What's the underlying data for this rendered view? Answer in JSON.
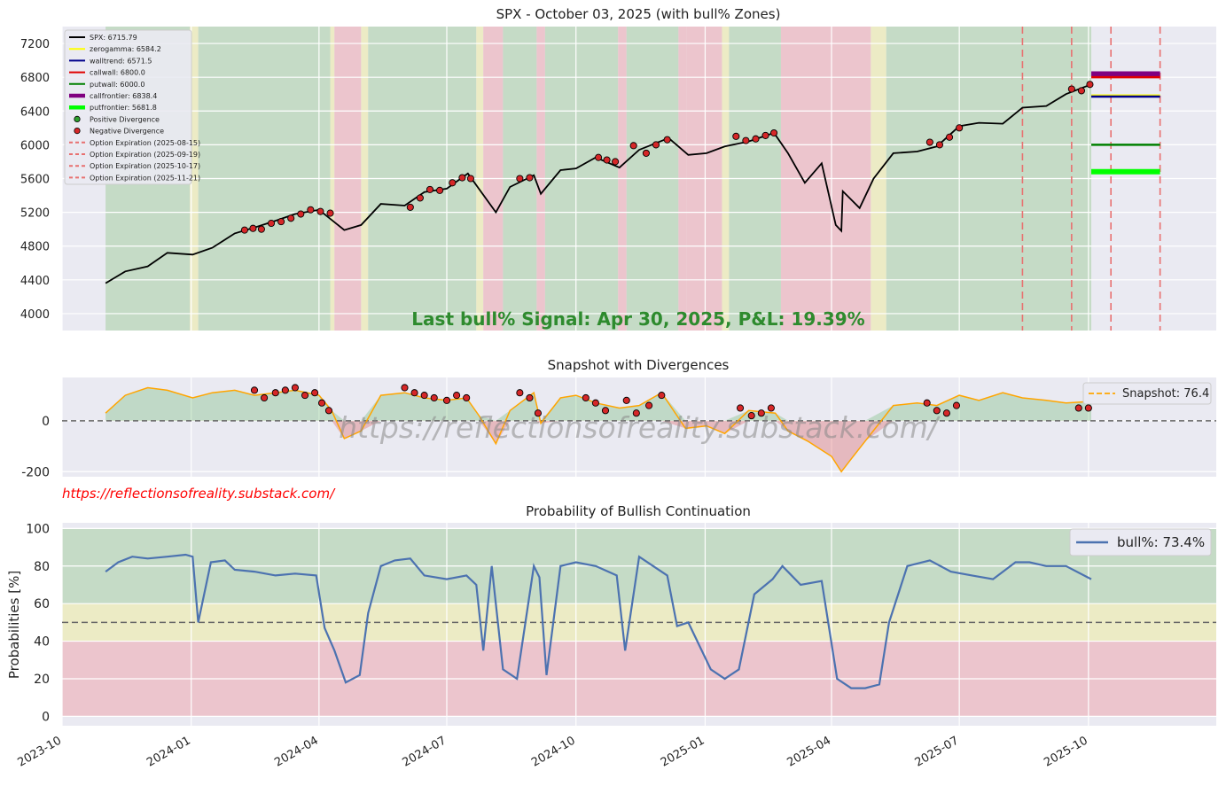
{
  "colors": {
    "axes_bg": "#eaeaf2",
    "grid": "#ffffff",
    "zone_green": "#c5dbc6",
    "zone_yellow": "#ecebc5",
    "zone_red": "#ecc5cd",
    "spx": "#000000",
    "zerogamma": "#ffff00",
    "walltrend": "#00008b",
    "callwall": "#e00000",
    "putwall": "#008000",
    "callfrontier": "#800080",
    "putfrontier": "#00ff00",
    "expiration": "#e87070",
    "divergence_fill": "#d62728",
    "snapshot_line": "#ffa500",
    "bull_line": "#4c72b0",
    "signal_text": "#2e8b2e",
    "watermark": "#ff0000"
  },
  "chart_data": [
    {
      "type": "line",
      "title": "SPX - October 03, 2025 (with bull% Zones)",
      "annotation": "Last bull% Signal: Apr 30, 2025, P&L: 19.39%",
      "x_range": [
        "2023-10-01",
        "2025-12-31"
      ],
      "ylim": [
        3800,
        7400
      ],
      "yticks": [
        4000,
        4400,
        4800,
        5200,
        5600,
        6000,
        6400,
        6800,
        7200
      ],
      "grid": true,
      "legend_position": "top-left",
      "legend": [
        {
          "label": "SPX:  6715.79",
          "kind": "line",
          "color": "#000000"
        },
        {
          "label": "zerogamma: 6584.2",
          "kind": "line",
          "color": "#ffff00"
        },
        {
          "label": "walltrend: 6571.5",
          "kind": "line",
          "color": "#00008b"
        },
        {
          "label": "callwall: 6800.0",
          "kind": "line",
          "color": "#e00000"
        },
        {
          "label": "putwall: 6000.0",
          "kind": "line",
          "color": "#008000"
        },
        {
          "label": "callfrontier: 6838.4",
          "kind": "thick",
          "color": "#800080"
        },
        {
          "label": "putfrontier: 5681.8",
          "kind": "thick",
          "color": "#00ff00"
        },
        {
          "label": "Positive Divergence",
          "kind": "dot",
          "color": "#2ca02c"
        },
        {
          "label": "Negative Divergence",
          "kind": "dot",
          "color": "#d62728"
        },
        {
          "label": "Option Expiration (2025-08-15)",
          "kind": "dash",
          "color": "#e87070"
        },
        {
          "label": "Option Expiration (2025-09-19)",
          "kind": "dash",
          "color": "#e87070"
        },
        {
          "label": "Option Expiration (2025-10-17)",
          "kind": "dash",
          "color": "#e87070"
        },
        {
          "label": "Option Expiration (2025-11-21)",
          "kind": "dash",
          "color": "#e87070"
        }
      ],
      "spx_series": {
        "x": [
          "2023-11-01",
          "2023-11-15",
          "2023-12-01",
          "2023-12-15",
          "2024-01-02",
          "2024-01-16",
          "2024-02-01",
          "2024-02-15",
          "2024-03-01",
          "2024-03-15",
          "2024-04-01",
          "2024-04-19",
          "2024-05-01",
          "2024-05-15",
          "2024-06-01",
          "2024-06-15",
          "2024-07-01",
          "2024-07-16",
          "2024-08-05",
          "2024-08-15",
          "2024-09-01",
          "2024-09-06",
          "2024-09-20",
          "2024-10-01",
          "2024-10-15",
          "2024-11-01",
          "2024-11-15",
          "2024-12-06",
          "2024-12-20",
          "2025-01-02",
          "2025-01-15",
          "2025-02-01",
          "2025-02-19",
          "2025-03-01",
          "2025-03-13",
          "2025-03-25",
          "2025-04-04",
          "2025-04-08",
          "2025-04-09",
          "2025-04-21",
          "2025-05-01",
          "2025-05-15",
          "2025-06-01",
          "2025-06-15",
          "2025-07-01",
          "2025-07-15",
          "2025-08-01",
          "2025-08-15",
          "2025-09-01",
          "2025-09-15",
          "2025-10-03"
        ],
        "y": [
          4360,
          4500,
          4560,
          4720,
          4700,
          4780,
          4950,
          5020,
          5100,
          5180,
          5230,
          4990,
          5050,
          5300,
          5280,
          5440,
          5480,
          5660,
          5200,
          5500,
          5640,
          5420,
          5700,
          5720,
          5850,
          5730,
          5940,
          6080,
          5880,
          5900,
          5980,
          6040,
          6140,
          5900,
          5550,
          5780,
          5050,
          4980,
          5450,
          5250,
          5600,
          5900,
          5920,
          5980,
          6220,
          6260,
          6250,
          6440,
          6460,
          6600,
          6716
        ]
      },
      "horizontal_levels": [
        {
          "name": "callfrontier",
          "value": 6838.4
        },
        {
          "name": "callwall",
          "value": 6800.0
        },
        {
          "name": "zerogamma",
          "value": 6584.2
        },
        {
          "name": "walltrend",
          "value": 6571.5
        },
        {
          "name": "putwall",
          "value": 6000.0
        },
        {
          "name": "putfrontier",
          "value": 5681.8
        }
      ],
      "expirations": [
        "2025-08-15",
        "2025-09-19",
        "2025-10-17",
        "2025-11-21"
      ],
      "zones": [
        {
          "start": "2023-11-01",
          "end": "2023-12-31",
          "zone": "green"
        },
        {
          "start": "2023-12-31",
          "end": "2024-01-06",
          "zone": "yellow"
        },
        {
          "start": "2024-01-06",
          "end": "2024-04-09",
          "zone": "green"
        },
        {
          "start": "2024-04-09",
          "end": "2024-04-12",
          "zone": "yellow"
        },
        {
          "start": "2024-04-12",
          "end": "2024-05-01",
          "zone": "red"
        },
        {
          "start": "2024-05-01",
          "end": "2024-05-06",
          "zone": "yellow"
        },
        {
          "start": "2024-05-06",
          "end": "2024-07-22",
          "zone": "green"
        },
        {
          "start": "2024-07-22",
          "end": "2024-07-27",
          "zone": "yellow"
        },
        {
          "start": "2024-07-27",
          "end": "2024-08-10",
          "zone": "red"
        },
        {
          "start": "2024-08-10",
          "end": "2024-09-03",
          "zone": "green"
        },
        {
          "start": "2024-09-03",
          "end": "2024-09-09",
          "zone": "red"
        },
        {
          "start": "2024-09-09",
          "end": "2024-10-31",
          "zone": "green"
        },
        {
          "start": "2024-10-31",
          "end": "2024-11-06",
          "zone": "red"
        },
        {
          "start": "2024-11-06",
          "end": "2024-12-13",
          "zone": "green"
        },
        {
          "start": "2024-12-13",
          "end": "2024-12-19",
          "zone": "red"
        },
        {
          "start": "2024-12-19",
          "end": "2025-01-13",
          "zone": "red"
        },
        {
          "start": "2025-01-13",
          "end": "2025-01-18",
          "zone": "yellow"
        },
        {
          "start": "2025-01-18",
          "end": "2025-02-24",
          "zone": "green"
        },
        {
          "start": "2025-02-24",
          "end": "2025-04-29",
          "zone": "red"
        },
        {
          "start": "2025-04-29",
          "end": "2025-05-10",
          "zone": "yellow"
        },
        {
          "start": "2025-05-10",
          "end": "2025-10-03",
          "zone": "green"
        }
      ],
      "negative_divergence_markers": [
        {
          "x": "2024-02-08",
          "y": 4990
        },
        {
          "x": "2024-02-14",
          "y": 5010
        },
        {
          "x": "2024-02-20",
          "y": 5000
        },
        {
          "x": "2024-02-27",
          "y": 5070
        },
        {
          "x": "2024-03-05",
          "y": 5090
        },
        {
          "x": "2024-03-12",
          "y": 5130
        },
        {
          "x": "2024-03-19",
          "y": 5180
        },
        {
          "x": "2024-03-26",
          "y": 5230
        },
        {
          "x": "2024-04-02",
          "y": 5210
        },
        {
          "x": "2024-04-09",
          "y": 5190
        },
        {
          "x": "2024-06-05",
          "y": 5260
        },
        {
          "x": "2024-06-12",
          "y": 5370
        },
        {
          "x": "2024-06-19",
          "y": 5470
        },
        {
          "x": "2024-06-26",
          "y": 5460
        },
        {
          "x": "2024-07-05",
          "y": 5550
        },
        {
          "x": "2024-07-12",
          "y": 5610
        },
        {
          "x": "2024-07-18",
          "y": 5600
        },
        {
          "x": "2024-08-22",
          "y": 5600
        },
        {
          "x": "2024-08-29",
          "y": 5610
        },
        {
          "x": "2024-10-17",
          "y": 5850
        },
        {
          "x": "2024-10-23",
          "y": 5820
        },
        {
          "x": "2024-10-29",
          "y": 5800
        },
        {
          "x": "2024-11-11",
          "y": 5990
        },
        {
          "x": "2024-11-20",
          "y": 5900
        },
        {
          "x": "2024-11-27",
          "y": 6000
        },
        {
          "x": "2024-12-05",
          "y": 6060
        },
        {
          "x": "2025-01-23",
          "y": 6100
        },
        {
          "x": "2025-01-30",
          "y": 6050
        },
        {
          "x": "2025-02-06",
          "y": 6070
        },
        {
          "x": "2025-02-13",
          "y": 6110
        },
        {
          "x": "2025-02-19",
          "y": 6140
        },
        {
          "x": "2025-06-10",
          "y": 6030
        },
        {
          "x": "2025-06-17",
          "y": 6000
        },
        {
          "x": "2025-06-24",
          "y": 6090
        },
        {
          "x": "2025-07-01",
          "y": 6200
        },
        {
          "x": "2025-09-19",
          "y": 6660
        },
        {
          "x": "2025-09-26",
          "y": 6640
        },
        {
          "x": "2025-10-02",
          "y": 6715
        }
      ]
    },
    {
      "type": "area",
      "title": "Snapshot with Divergences",
      "ylim": [
        -220,
        170
      ],
      "yticks": [
        -200,
        0
      ],
      "grid": true,
      "legend_position": "top-right",
      "legend": [
        {
          "label": "Snapshot: 76.4",
          "kind": "dash",
          "color": "#ffa500"
        }
      ],
      "watermark": "https://reflectionsofreality.substack.com/",
      "series": {
        "x": [
          "2023-11-01",
          "2023-11-15",
          "2023-12-01",
          "2023-12-15",
          "2024-01-02",
          "2024-01-16",
          "2024-02-01",
          "2024-02-15",
          "2024-03-01",
          "2024-03-15",
          "2024-04-01",
          "2024-04-10",
          "2024-04-19",
          "2024-05-01",
          "2024-05-15",
          "2024-06-01",
          "2024-06-15",
          "2024-07-01",
          "2024-07-15",
          "2024-07-24",
          "2024-08-05",
          "2024-08-15",
          "2024-09-01",
          "2024-09-06",
          "2024-09-20",
          "2024-10-01",
          "2024-10-15",
          "2024-11-01",
          "2024-11-15",
          "2024-12-01",
          "2024-12-18",
          "2025-01-02",
          "2025-01-15",
          "2025-02-01",
          "2025-02-20",
          "2025-03-01",
          "2025-03-15",
          "2025-04-01",
          "2025-04-08",
          "2025-04-15",
          "2025-04-25",
          "2025-05-15",
          "2025-06-01",
          "2025-06-15",
          "2025-07-01",
          "2025-07-15",
          "2025-08-01",
          "2025-08-15",
          "2025-09-01",
          "2025-09-15",
          "2025-10-03"
        ],
        "y": [
          30,
          100,
          130,
          120,
          90,
          110,
          120,
          100,
          110,
          120,
          100,
          40,
          -70,
          -40,
          100,
          110,
          90,
          80,
          90,
          20,
          -90,
          40,
          110,
          -10,
          90,
          100,
          70,
          50,
          60,
          110,
          -30,
          -20,
          -50,
          40,
          30,
          -40,
          -80,
          -140,
          -200,
          -150,
          -80,
          60,
          70,
          60,
          100,
          80,
          110,
          90,
          80,
          70,
          76
        ]
      },
      "markers": [
        {
          "x": "2024-02-15",
          "y": 120
        },
        {
          "x": "2024-02-22",
          "y": 90
        },
        {
          "x": "2024-03-01",
          "y": 110
        },
        {
          "x": "2024-03-08",
          "y": 120
        },
        {
          "x": "2024-03-15",
          "y": 130
        },
        {
          "x": "2024-03-22",
          "y": 100
        },
        {
          "x": "2024-03-29",
          "y": 110
        },
        {
          "x": "2024-04-03",
          "y": 70
        },
        {
          "x": "2024-04-08",
          "y": 40
        },
        {
          "x": "2024-06-01",
          "y": 130
        },
        {
          "x": "2024-06-08",
          "y": 110
        },
        {
          "x": "2024-06-15",
          "y": 100
        },
        {
          "x": "2024-06-22",
          "y": 90
        },
        {
          "x": "2024-07-01",
          "y": 80
        },
        {
          "x": "2024-07-08",
          "y": 100
        },
        {
          "x": "2024-07-15",
          "y": 90
        },
        {
          "x": "2024-08-22",
          "y": 110
        },
        {
          "x": "2024-08-29",
          "y": 90
        },
        {
          "x": "2024-09-04",
          "y": 30
        },
        {
          "x": "2024-10-08",
          "y": 90
        },
        {
          "x": "2024-10-15",
          "y": 70
        },
        {
          "x": "2024-10-22",
          "y": 40
        },
        {
          "x": "2024-11-06",
          "y": 80
        },
        {
          "x": "2024-11-13",
          "y": 30
        },
        {
          "x": "2024-11-22",
          "y": 60
        },
        {
          "x": "2024-12-01",
          "y": 100
        },
        {
          "x": "2025-01-26",
          "y": 50
        },
        {
          "x": "2025-02-03",
          "y": 20
        },
        {
          "x": "2025-02-10",
          "y": 30
        },
        {
          "x": "2025-02-17",
          "y": 50
        },
        {
          "x": "2025-06-08",
          "y": 70
        },
        {
          "x": "2025-06-15",
          "y": 40
        },
        {
          "x": "2025-06-22",
          "y": 30
        },
        {
          "x": "2025-06-29",
          "y": 60
        },
        {
          "x": "2025-09-24",
          "y": 50
        },
        {
          "x": "2025-10-01",
          "y": 50
        }
      ]
    },
    {
      "type": "line",
      "title": "Probability of Bullish Continuation",
      "ylabel": "Probabilities [%]",
      "ylim": [
        -5,
        103
      ],
      "yticks": [
        0,
        20,
        40,
        60,
        80,
        100
      ],
      "grid": true,
      "legend_position": "top-right",
      "legend": [
        {
          "label": "bull%: 73.4%",
          "kind": "line",
          "color": "#4c72b0"
        }
      ],
      "bands": [
        {
          "from": 0,
          "to": 40,
          "zone": "red"
        },
        {
          "from": 40,
          "to": 60,
          "zone": "yellow"
        },
        {
          "from": 60,
          "to": 100,
          "zone": "green"
        }
      ],
      "reference_line": 50,
      "x_ticks": [
        "2023-10",
        "2024-01",
        "2024-04",
        "2024-07",
        "2024-10",
        "2025-01",
        "2025-04",
        "2025-07",
        "2025-10"
      ],
      "series": {
        "x": [
          "2023-11-01",
          "2023-11-10",
          "2023-11-20",
          "2023-12-01",
          "2023-12-15",
          "2023-12-28",
          "2024-01-02",
          "2024-01-06",
          "2024-01-15",
          "2024-01-25",
          "2024-02-01",
          "2024-02-15",
          "2024-03-01",
          "2024-03-15",
          "2024-03-30",
          "2024-04-05",
          "2024-04-12",
          "2024-04-20",
          "2024-04-30",
          "2024-05-06",
          "2024-05-15",
          "2024-05-25",
          "2024-06-05",
          "2024-06-15",
          "2024-07-01",
          "2024-07-15",
          "2024-07-22",
          "2024-07-27",
          "2024-08-02",
          "2024-08-10",
          "2024-08-20",
          "2024-09-01",
          "2024-09-05",
          "2024-09-10",
          "2024-09-20",
          "2024-10-01",
          "2024-10-15",
          "2024-10-30",
          "2024-11-05",
          "2024-11-15",
          "2024-11-25",
          "2024-12-05",
          "2024-12-12",
          "2024-12-20",
          "2025-01-05",
          "2025-01-15",
          "2025-01-25",
          "2025-02-05",
          "2025-02-18",
          "2025-02-25",
          "2025-03-10",
          "2025-03-25",
          "2025-04-05",
          "2025-04-15",
          "2025-04-25",
          "2025-05-05",
          "2025-05-12",
          "2025-05-25",
          "2025-06-10",
          "2025-06-25",
          "2025-07-10",
          "2025-07-25",
          "2025-08-10",
          "2025-08-20",
          "2025-09-01",
          "2025-09-15",
          "2025-10-03"
        ],
        "y": [
          77,
          82,
          85,
          84,
          85,
          86,
          85,
          50,
          82,
          83,
          78,
          77,
          75,
          76,
          75,
          47,
          35,
          18,
          22,
          55,
          80,
          83,
          84,
          75,
          73,
          75,
          70,
          35,
          80,
          25,
          20,
          80,
          74,
          22,
          80,
          82,
          80,
          75,
          35,
          85,
          80,
          75,
          48,
          50,
          25,
          20,
          25,
          65,
          73,
          80,
          70,
          72,
          20,
          15,
          15,
          17,
          50,
          80,
          83,
          77,
          75,
          73,
          82,
          82,
          80,
          80,
          73
        ]
      }
    }
  ]
}
